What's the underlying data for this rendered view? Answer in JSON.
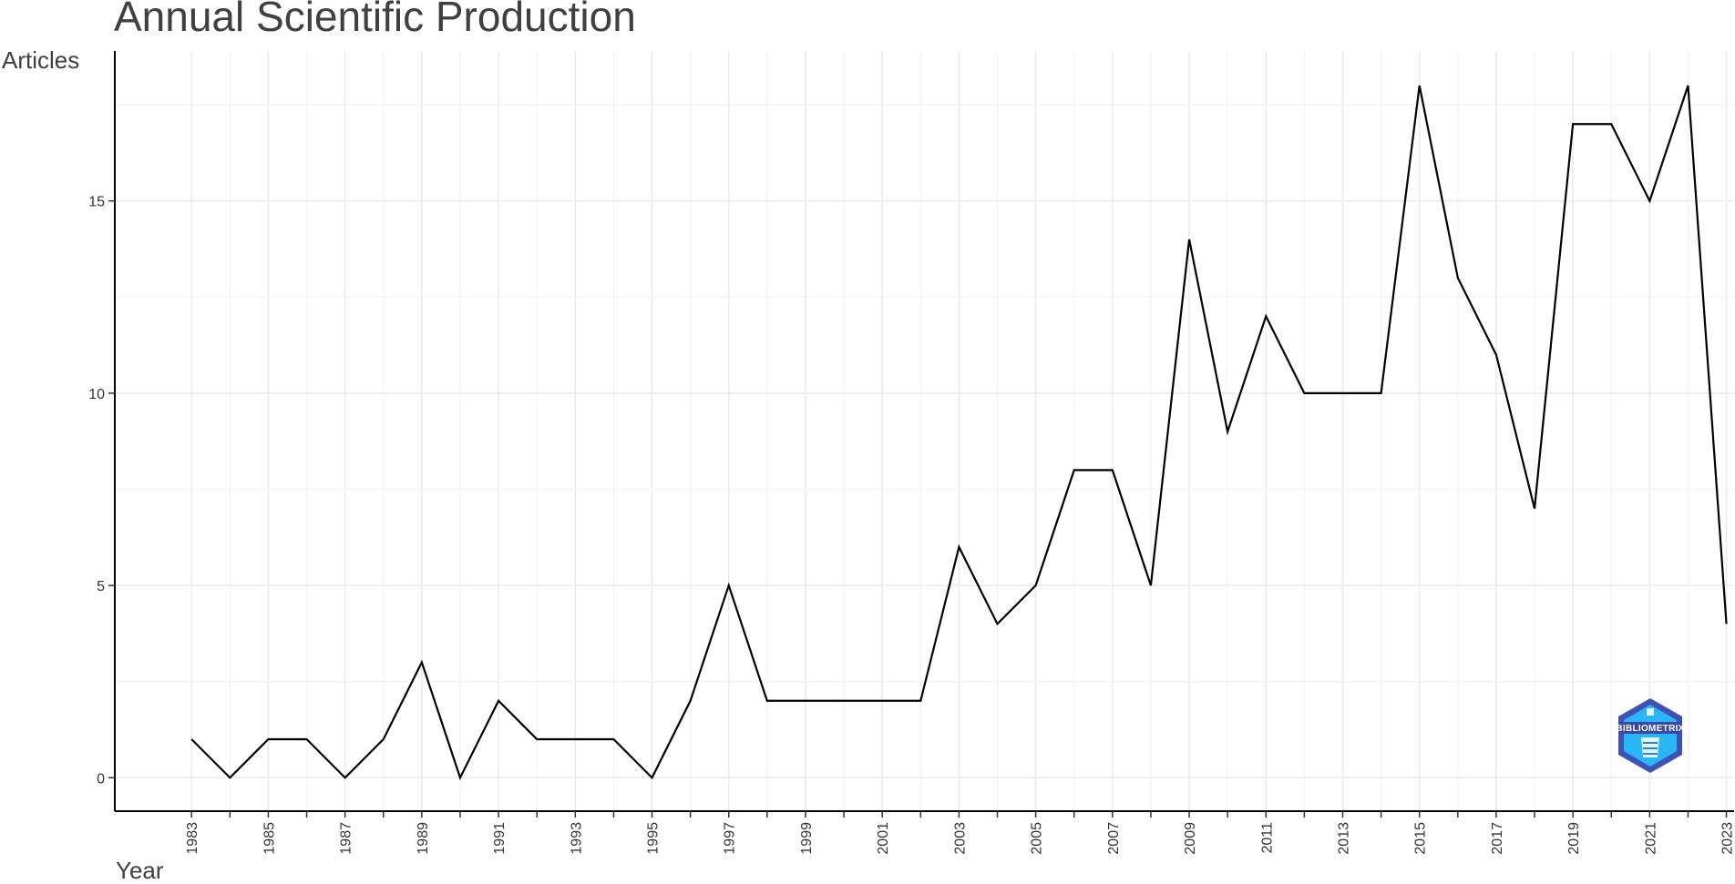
{
  "chart_data": {
    "type": "line",
    "title": "Annual Scientific Production",
    "xlabel": "Year",
    "ylabel": "Articles",
    "x": [
      1983,
      1984,
      1985,
      1986,
      1987,
      1988,
      1989,
      1990,
      1991,
      1992,
      1993,
      1994,
      1995,
      1996,
      1997,
      1998,
      1999,
      2000,
      2001,
      2002,
      2003,
      2004,
      2005,
      2006,
      2007,
      2008,
      2009,
      2010,
      2011,
      2012,
      2013,
      2014,
      2015,
      2016,
      2017,
      2018,
      2019,
      2020,
      2021,
      2022,
      2023
    ],
    "series": [
      {
        "values": [
          1,
          0,
          1,
          1,
          0,
          1,
          3,
          0,
          2,
          1,
          1,
          1,
          0,
          2,
          5,
          2,
          2,
          2,
          2,
          2,
          6,
          4,
          5,
          8,
          8,
          5,
          14,
          9,
          12,
          10,
          10,
          10,
          18,
          13,
          11,
          7,
          17,
          17,
          15,
          18,
          4
        ]
      }
    ],
    "x_tick_labels": [
      "1983",
      "1985",
      "1987",
      "1989",
      "1991",
      "1993",
      "1995",
      "1997",
      "1999",
      "2001",
      "2003",
      "2005",
      "2007",
      "2009",
      "2011",
      "2013",
      "2015",
      "2017",
      "2019",
      "2021",
      "2023"
    ],
    "y_ticks": [
      0,
      5,
      10,
      15
    ],
    "ylim": [
      -0.87,
      18.9
    ],
    "xlim": [
      1981,
      2023.2
    ],
    "grid": true,
    "line_color": "#000000",
    "logo": {
      "name": "bibliometrix-logo",
      "text": "BIBLIOMETRIX",
      "colors": [
        "#1e88e5",
        "#4fc3f7",
        "#3949ab"
      ]
    }
  }
}
